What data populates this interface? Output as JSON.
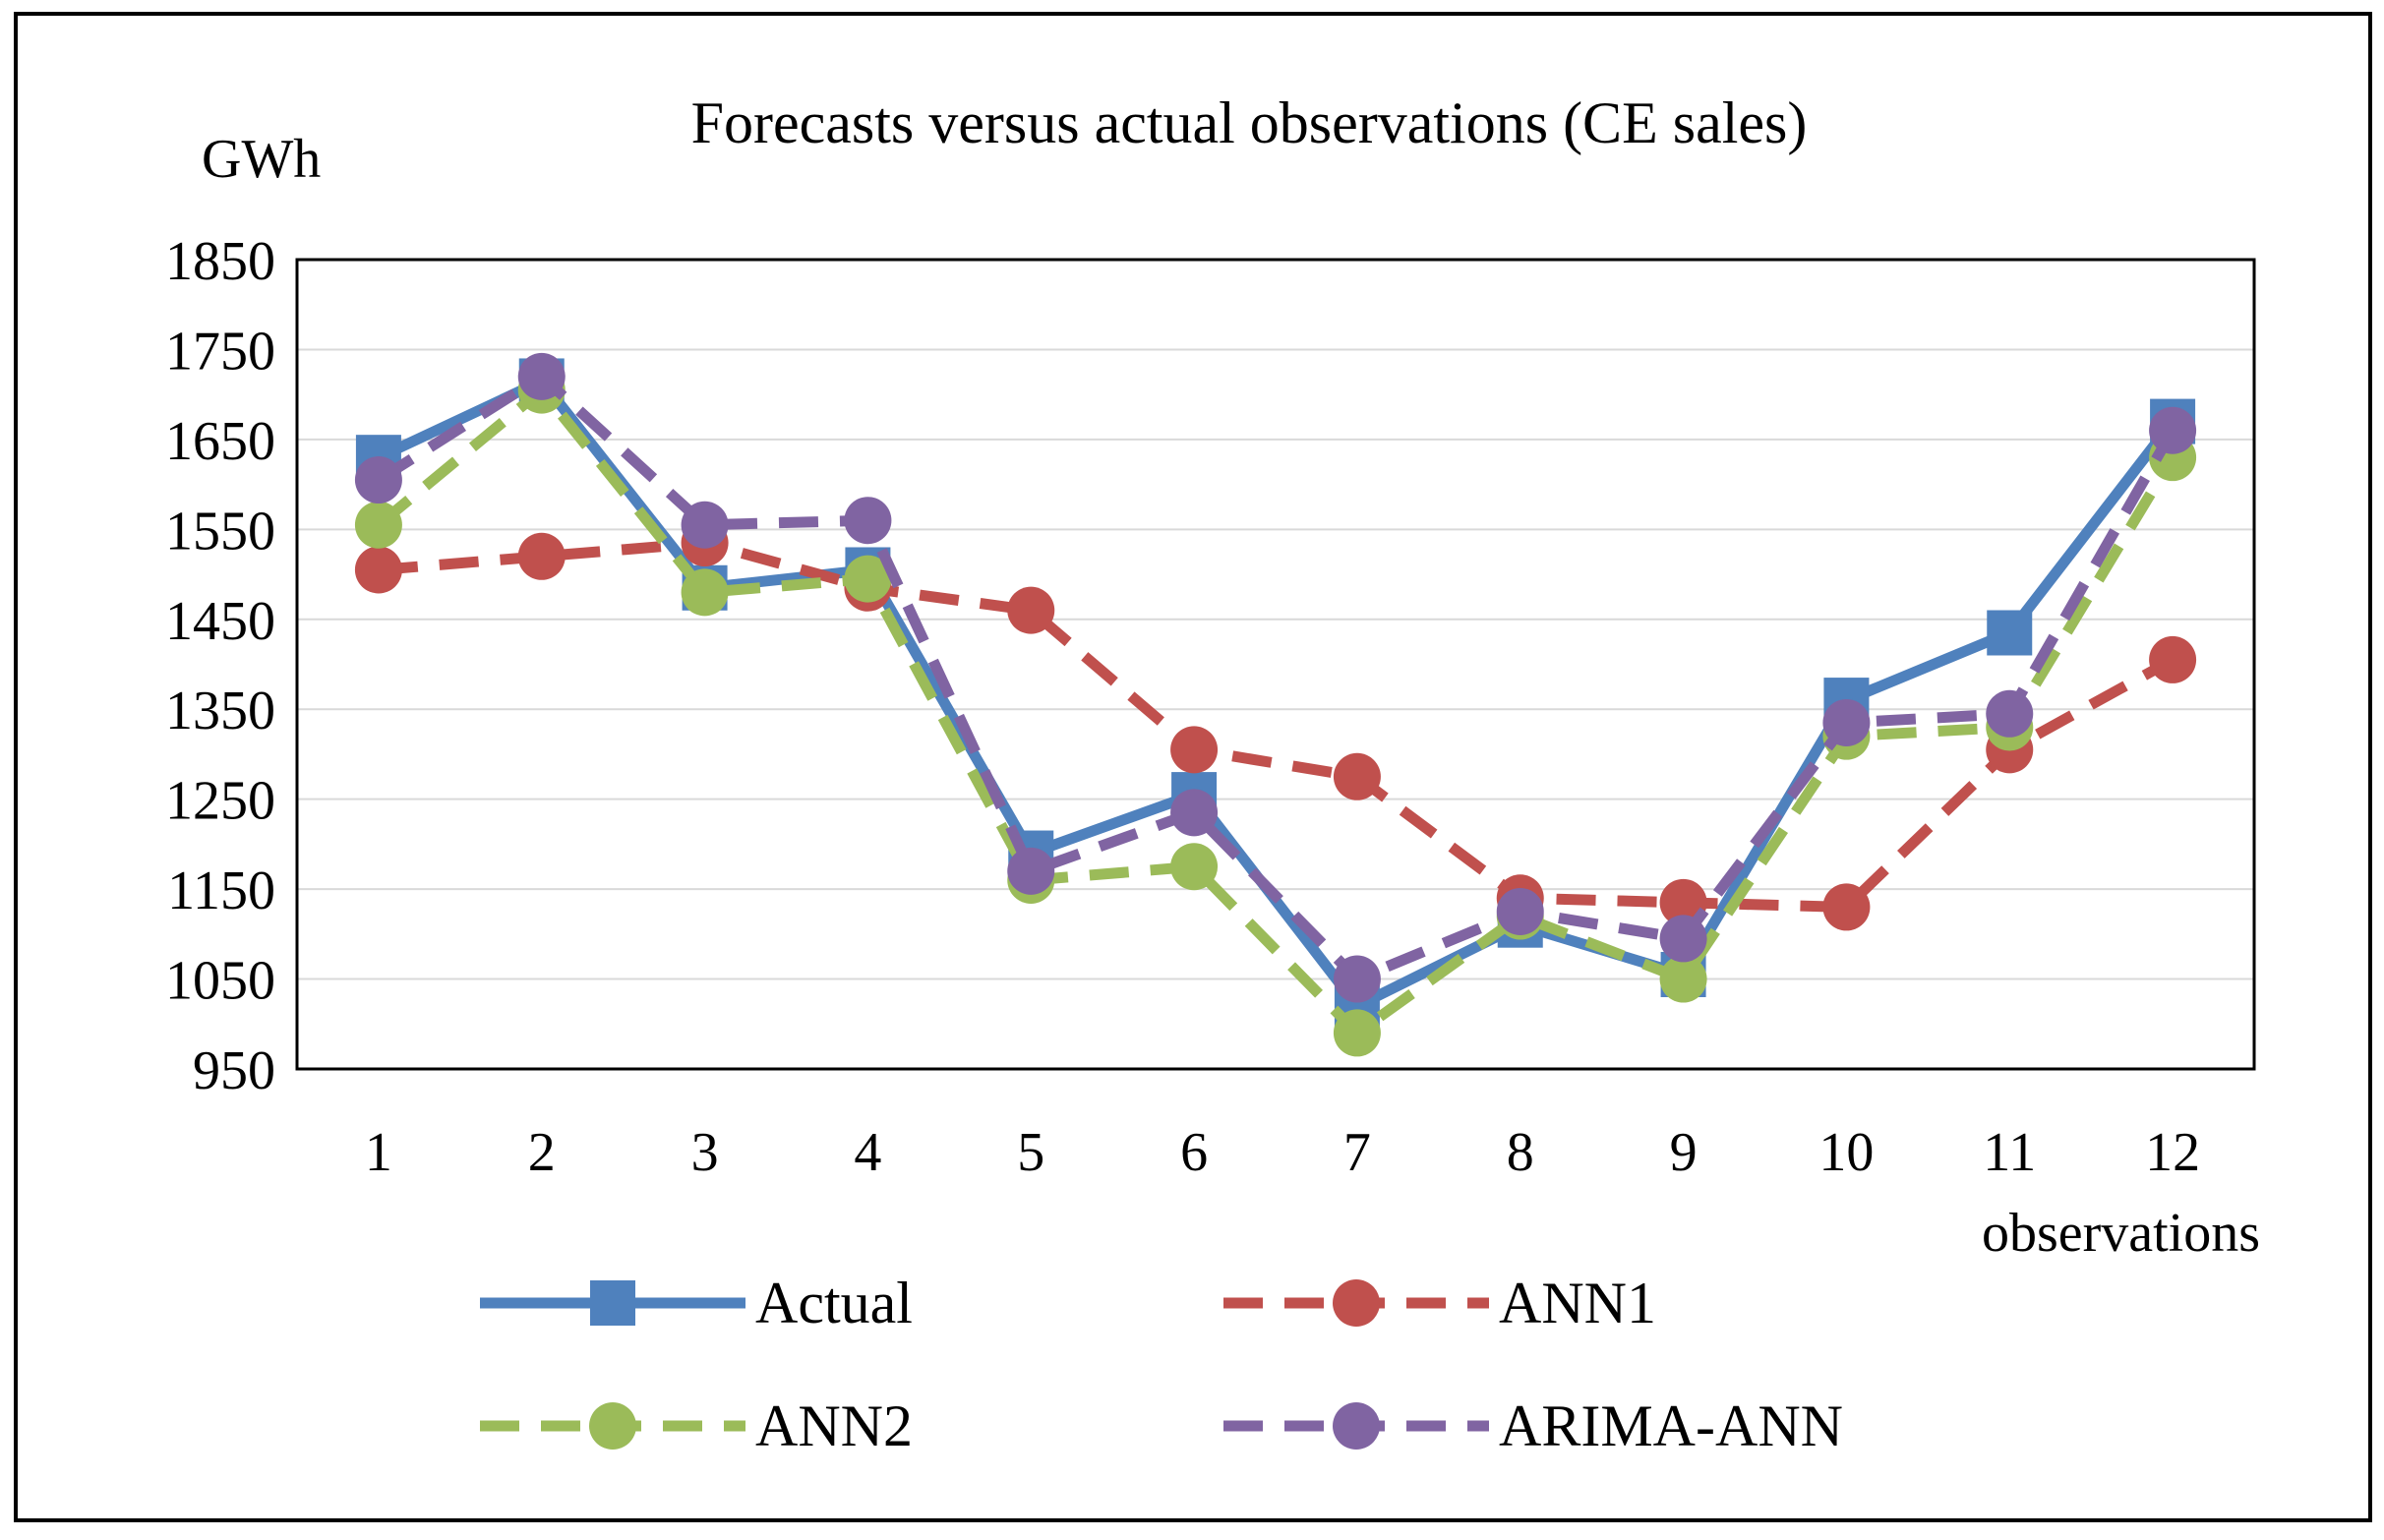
{
  "chart_data": {
    "type": "line",
    "title": "Forecasts versus actual observations (CE sales)",
    "ylabel": "GWh",
    "xlabel": "observations",
    "categories": [
      "1",
      "2",
      "3",
      "4",
      "5",
      "6",
      "7",
      "8",
      "9",
      "10",
      "11",
      "12"
    ],
    "ylim": [
      950,
      1850
    ],
    "yticks": [
      "950",
      "1050",
      "1150",
      "1250",
      "1350",
      "1450",
      "1550",
      "1650",
      "1750",
      "1850"
    ],
    "grid": true,
    "legend_position": "bottom",
    "series": [
      {
        "name": "Actual",
        "color": "#4f81bd",
        "dash": "solid",
        "marker": "square",
        "values": [
          1630,
          1715,
          1485,
          1505,
          1190,
          1255,
          1020,
          1110,
          1055,
          1360,
          1435,
          1670
        ]
      },
      {
        "name": "ANN1",
        "color": "#c0504d",
        "dash": "dashed",
        "marker": "circle",
        "values": [
          1505,
          1520,
          1535,
          1485,
          1460,
          1305,
          1275,
          1140,
          1135,
          1130,
          1305,
          1405
        ]
      },
      {
        "name": "ANN2",
        "color": "#9bbb59",
        "dash": "dashed",
        "marker": "circle",
        "values": [
          1555,
          1705,
          1480,
          1495,
          1160,
          1175,
          990,
          1120,
          1050,
          1320,
          1330,
          1630
        ]
      },
      {
        "name": "ARIMA-ANN",
        "color": "#8064a2",
        "dash": "dashed",
        "marker": "circle",
        "values": [
          1605,
          1720,
          1555,
          1560,
          1170,
          1235,
          1050,
          1125,
          1095,
          1335,
          1345,
          1660
        ]
      }
    ]
  }
}
